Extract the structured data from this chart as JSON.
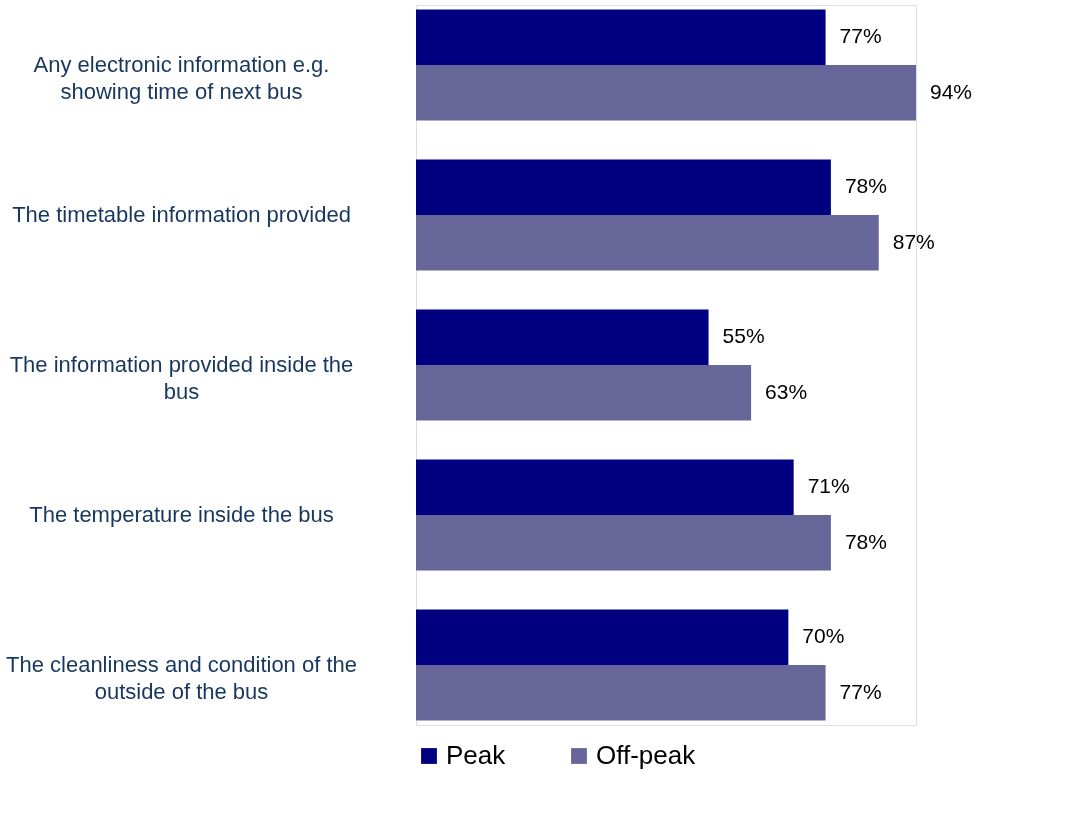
{
  "chart_data": {
    "type": "bar",
    "orientation": "horizontal",
    "categories": [
      "Any electronic information e.g. showing time of next bus",
      "The timetable information provided",
      "The information provided inside the bus",
      "The temperature inside the bus",
      "The cleanliness and condition of the outside of the bus"
    ],
    "series": [
      {
        "name": "Peak",
        "color": "#000080",
        "values": [
          77,
          78,
          55,
          71,
          70
        ],
        "value_labels": [
          "77%",
          "78%",
          "55%",
          "71%",
          "70%"
        ]
      },
      {
        "name": "Off-peak",
        "color": "#666699",
        "values": [
          94,
          87,
          63,
          78,
          77
        ],
        "value_labels": [
          "94%",
          "87%",
          "63%",
          "78%",
          "77%"
        ]
      }
    ],
    "legend": "bottom",
    "grid": false
  }
}
